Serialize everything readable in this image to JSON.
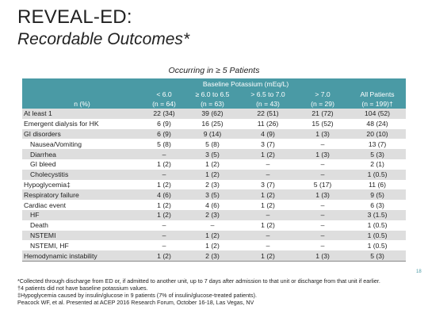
{
  "title_line1": "REVEAL-ED:",
  "title_line2": "Recordable Outcomes*",
  "subtitle": "Occurring in ≥ 5 Patients",
  "table": {
    "group_header": "Baseline Potassium (mEq/L)",
    "row_header": "n (%)",
    "columns": [
      {
        "range": "< 6.0",
        "n": "(n = 64)"
      },
      {
        "range": "≥ 6.0 to 6.5",
        "n": "(n = 63)"
      },
      {
        "range": "> 6.5 to 7.0",
        "n": "(n = 43)"
      },
      {
        "range": "> 7.0",
        "n": "(n = 29)"
      },
      {
        "range": "All Patients",
        "n": "(n = 199)†"
      }
    ],
    "rows": [
      {
        "label": "At least 1",
        "indent": false,
        "values": [
          "22 (34)",
          "39 (62)",
          "22 (51)",
          "21 (72)",
          "104 (52)"
        ]
      },
      {
        "label": "Emergent dialysis for HK",
        "indent": false,
        "values": [
          "6 (9)",
          "16 (25)",
          "11 (26)",
          "15 (52)",
          "48 (24)"
        ]
      },
      {
        "label": "GI disorders",
        "indent": false,
        "values": [
          "6 (9)",
          "9 (14)",
          "4 (9)",
          "1 (3)",
          "20 (10)"
        ]
      },
      {
        "label": "Nausea/Vomiting",
        "indent": true,
        "values": [
          "5 (8)",
          "5 (8)",
          "3 (7)",
          "–",
          "13 (7)"
        ]
      },
      {
        "label": "Diarrhea",
        "indent": true,
        "values": [
          "–",
          "3 (5)",
          "1 (2)",
          "1 (3)",
          "5 (3)"
        ]
      },
      {
        "label": "GI bleed",
        "indent": true,
        "values": [
          "1 (2)",
          "1 (2)",
          "–",
          "–",
          "2 (1)"
        ]
      },
      {
        "label": "Cholecystitis",
        "indent": true,
        "values": [
          "–",
          "1 (2)",
          "–",
          "–",
          "1 (0.5)"
        ]
      },
      {
        "label": "Hypoglycemia‡",
        "indent": false,
        "values": [
          "1 (2)",
          "2 (3)",
          "3 (7)",
          "5 (17)",
          "11 (6)"
        ]
      },
      {
        "label": "Respiratory failure",
        "indent": false,
        "values": [
          "4 (6)",
          "3 (5)",
          "1 (2)",
          "1 (3)",
          "9 (5)"
        ]
      },
      {
        "label": "Cardiac event",
        "indent": false,
        "values": [
          "1 (2)",
          "4 (6)",
          "1 (2)",
          "–",
          "6 (3)"
        ]
      },
      {
        "label": "HF",
        "indent": true,
        "values": [
          "1 (2)",
          "2 (3)",
          "–",
          "–",
          "3 (1.5)"
        ]
      },
      {
        "label": "Death",
        "indent": true,
        "values": [
          "–",
          "–",
          "1 (2)",
          "–",
          "1 (0.5)"
        ]
      },
      {
        "label": "NSTEMI",
        "indent": true,
        "values": [
          "–",
          "1 (2)",
          "–",
          "–",
          "1 (0.5)"
        ]
      },
      {
        "label": "NSTEMI, HF",
        "indent": true,
        "values": [
          "–",
          "1 (2)",
          "–",
          "–",
          "1 (0.5)"
        ]
      },
      {
        "label": "Hemodynamic instability",
        "indent": false,
        "values": [
          "1 (2)",
          "2 (3)",
          "1 (2)",
          "1 (3)",
          "5 (3)"
        ]
      }
    ]
  },
  "footnotes": [
    "*Collected through discharge from ED or, if admitted to another unit, up to 7 days after admission to that unit or discharge from that unit if earlier.",
    "†4 patients did not have baseline potassium values.",
    "‡Hypoglycemia caused by insulin/glucose in 9 patients (7% of insulin/glucose-treated patients).",
    "Peacock WF, et al. Presented at ACEP 2016 Research Forum, October 16-18, Las Vegas, NV"
  ],
  "page_number": "18",
  "colors": {
    "header_bg": "#4a9aa5",
    "row_shade": "#dedede"
  }
}
